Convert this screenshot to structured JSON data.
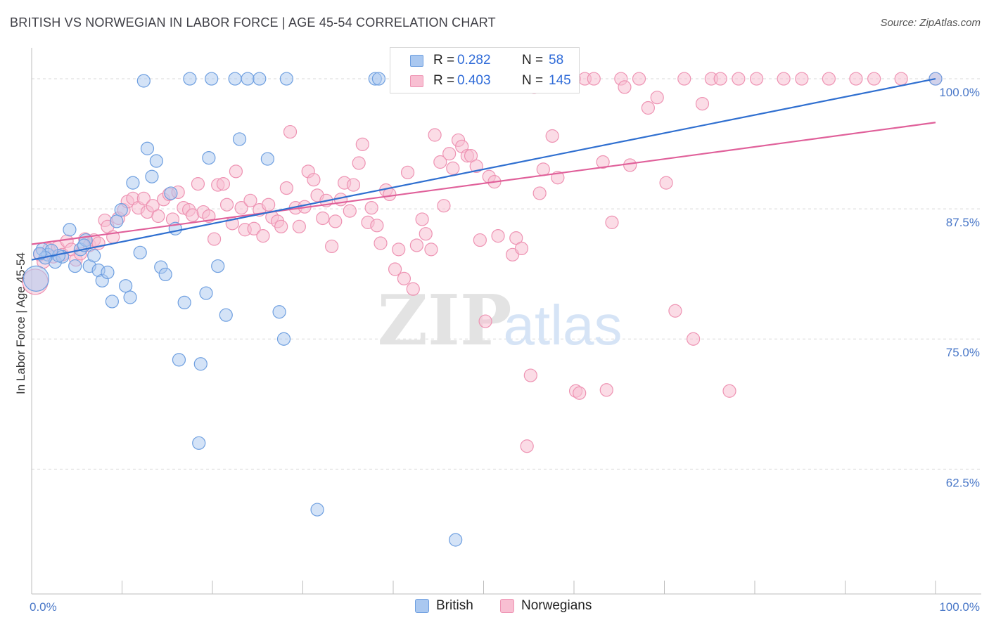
{
  "title": "BRITISH VS NORWEGIAN IN LABOR FORCE | AGE 45-54 CORRELATION CHART",
  "source": "Source: ZipAtlas.com",
  "watermark": {
    "zip": "ZIP",
    "atlas": "atlas"
  },
  "legend": {
    "british": {
      "r_label": "R =",
      "r_value": "0.282",
      "n_label": "N =",
      "n_value": "58"
    },
    "norwegians": {
      "r_label": "R =",
      "r_value": "0.403",
      "n_label": "N =",
      "n_value": "145"
    }
  },
  "bottom_legend": {
    "british": "British",
    "norwegians": "Norwegians"
  },
  "colors": {
    "british_fill": "#aac8f0",
    "british_stroke": "#6e9fe0",
    "british_line": "#2f6fd0",
    "norwegian_fill": "#f8bfd2",
    "norwegian_stroke": "#ee93b3",
    "norwegian_line": "#e0609a",
    "tick_text": "#4a78c8",
    "grid": "#d8d8d8"
  },
  "chart_data": {
    "type": "scatter",
    "title": "BRITISH VS NORWEGIAN IN LABOR FORCE | AGE 45-54 CORRELATION CHART",
    "xlabel": "",
    "ylabel": "In Labor Force | Age 45-54",
    "xlim": [
      0,
      100
    ],
    "ylim": [
      50.5,
      102.3
    ],
    "x_tick_labels": [
      "0.0%",
      "100.0%"
    ],
    "y_ticks": [
      {
        "value": 100.0,
        "label": "100.0%"
      },
      {
        "value": 87.5,
        "label": "87.5%"
      },
      {
        "value": 75.0,
        "label": "75.0%"
      },
      {
        "value": 62.5,
        "label": "62.5%"
      }
    ],
    "grid": true,
    "series": [
      {
        "name": "British",
        "trend": {
          "x": [
            0,
            100
          ],
          "y": [
            82.6,
            100.0
          ]
        },
        "points": [
          [
            0.5,
            80.8
          ],
          [
            1.2,
            83.6
          ],
          [
            1.8,
            83.1
          ],
          [
            2.6,
            82.4
          ],
          [
            3.4,
            82.9
          ],
          [
            4.2,
            85.5
          ],
          [
            4.8,
            82.0
          ],
          [
            5.4,
            83.6
          ],
          [
            6.0,
            84.5
          ],
          [
            6.4,
            82.0
          ],
          [
            6.9,
            83.0
          ],
          [
            7.4,
            81.6
          ],
          [
            7.8,
            80.6
          ],
          [
            8.4,
            81.4
          ],
          [
            8.9,
            78.6
          ],
          [
            9.4,
            86.3
          ],
          [
            9.9,
            87.4
          ],
          [
            10.4,
            80.1
          ],
          [
            10.9,
            79.0
          ],
          [
            11.2,
            90.0
          ],
          [
            12.0,
            83.3
          ],
          [
            12.4,
            99.8
          ],
          [
            12.8,
            93.3
          ],
          [
            13.3,
            90.6
          ],
          [
            13.8,
            92.1
          ],
          [
            14.3,
            81.9
          ],
          [
            14.8,
            81.2
          ],
          [
            15.4,
            89.0
          ],
          [
            15.9,
            85.6
          ],
          [
            16.9,
            78.5
          ],
          [
            17.5,
            100.0
          ],
          [
            18.5,
            65.0
          ],
          [
            18.7,
            72.6
          ],
          [
            19.3,
            79.4
          ],
          [
            19.6,
            92.4
          ],
          [
            16.3,
            73.0
          ],
          [
            19.9,
            100.0
          ],
          [
            20.6,
            82.0
          ],
          [
            21.5,
            77.3
          ],
          [
            22.5,
            100.0
          ],
          [
            23.0,
            94.2
          ],
          [
            23.9,
            100.0
          ],
          [
            25.2,
            100.0
          ],
          [
            26.1,
            92.3
          ],
          [
            27.4,
            77.6
          ],
          [
            27.9,
            75.0
          ],
          [
            28.2,
            100.0
          ],
          [
            31.6,
            58.6
          ],
          [
            38.0,
            100.0
          ],
          [
            38.4,
            100.0
          ],
          [
            46.9,
            55.7
          ],
          [
            52.0,
            100.0
          ],
          [
            100.0,
            100.0
          ],
          [
            3.0,
            83.0
          ],
          [
            2.2,
            83.5
          ],
          [
            5.8,
            84.0
          ],
          [
            1.5,
            82.8
          ],
          [
            0.9,
            83.2
          ]
        ]
      },
      {
        "name": "Norwegians",
        "trend": {
          "x": [
            0,
            100
          ],
          "y": [
            84.1,
            95.8
          ]
        },
        "points": [
          [
            0.4,
            80.5
          ],
          [
            0.9,
            83.1
          ],
          [
            1.3,
            82.4
          ],
          [
            1.9,
            83.6
          ],
          [
            2.4,
            82.9
          ],
          [
            2.9,
            83.8
          ],
          [
            3.4,
            83.1
          ],
          [
            3.9,
            84.4
          ],
          [
            4.4,
            83.6
          ],
          [
            4.9,
            82.6
          ],
          [
            5.4,
            83.2
          ],
          [
            5.9,
            84.6
          ],
          [
            6.4,
            84.0
          ],
          [
            6.9,
            84.5
          ],
          [
            7.4,
            84.2
          ],
          [
            8.1,
            86.4
          ],
          [
            8.4,
            85.8
          ],
          [
            9.0,
            84.8
          ],
          [
            9.6,
            86.6
          ],
          [
            10.2,
            87.4
          ],
          [
            10.6,
            88.2
          ],
          [
            11.2,
            88.5
          ],
          [
            11.8,
            87.6
          ],
          [
            12.4,
            88.5
          ],
          [
            12.8,
            87.2
          ],
          [
            13.4,
            87.8
          ],
          [
            14.0,
            86.8
          ],
          [
            14.6,
            88.4
          ],
          [
            15.2,
            88.9
          ],
          [
            15.6,
            86.5
          ],
          [
            16.2,
            89.1
          ],
          [
            16.8,
            87.6
          ],
          [
            17.4,
            87.4
          ],
          [
            17.8,
            86.9
          ],
          [
            18.4,
            89.9
          ],
          [
            19.0,
            87.2
          ],
          [
            19.6,
            86.8
          ],
          [
            20.2,
            84.6
          ],
          [
            20.6,
            89.8
          ],
          [
            21.2,
            89.9
          ],
          [
            21.6,
            87.9
          ],
          [
            22.2,
            86.1
          ],
          [
            22.6,
            91.1
          ],
          [
            23.2,
            87.6
          ],
          [
            23.6,
            85.5
          ],
          [
            24.2,
            88.3
          ],
          [
            24.6,
            85.6
          ],
          [
            25.2,
            87.4
          ],
          [
            25.6,
            84.9
          ],
          [
            26.2,
            87.9
          ],
          [
            26.6,
            86.7
          ],
          [
            27.2,
            86.3
          ],
          [
            27.6,
            85.8
          ],
          [
            28.2,
            89.5
          ],
          [
            28.6,
            94.9
          ],
          [
            29.2,
            87.6
          ],
          [
            29.6,
            85.8
          ],
          [
            30.2,
            87.7
          ],
          [
            30.6,
            91.1
          ],
          [
            31.2,
            90.3
          ],
          [
            31.6,
            88.8
          ],
          [
            32.2,
            86.6
          ],
          [
            32.6,
            88.3
          ],
          [
            33.2,
            83.9
          ],
          [
            33.6,
            86.3
          ],
          [
            34.2,
            88.4
          ],
          [
            34.6,
            90.0
          ],
          [
            35.2,
            87.3
          ],
          [
            35.6,
            89.8
          ],
          [
            36.2,
            91.9
          ],
          [
            36.6,
            93.7
          ],
          [
            37.2,
            86.2
          ],
          [
            37.6,
            87.6
          ],
          [
            38.2,
            85.9
          ],
          [
            38.6,
            84.2
          ],
          [
            39.2,
            89.3
          ],
          [
            39.6,
            88.9
          ],
          [
            40.2,
            81.7
          ],
          [
            40.6,
            83.6
          ],
          [
            41.2,
            80.8
          ],
          [
            41.6,
            91.0
          ],
          [
            42.2,
            79.8
          ],
          [
            42.6,
            84.0
          ],
          [
            43.2,
            86.5
          ],
          [
            43.6,
            85.1
          ],
          [
            44.2,
            83.6
          ],
          [
            44.6,
            94.6
          ],
          [
            45.2,
            92.0
          ],
          [
            45.6,
            87.8
          ],
          [
            46.2,
            92.8
          ],
          [
            46.6,
            91.4
          ],
          [
            47.2,
            94.1
          ],
          [
            47.6,
            93.5
          ],
          [
            48.2,
            92.6
          ],
          [
            48.6,
            92.6
          ],
          [
            49.2,
            91.6
          ],
          [
            49.6,
            84.5
          ],
          [
            50.2,
            76.7
          ],
          [
            50.6,
            90.6
          ],
          [
            51.2,
            90.1
          ],
          [
            51.6,
            84.9
          ],
          [
            52.2,
            99.6
          ],
          [
            53.2,
            83.1
          ],
          [
            53.6,
            84.7
          ],
          [
            54.2,
            83.7
          ],
          [
            55.2,
            71.5
          ],
          [
            55.6,
            99.2
          ],
          [
            56.2,
            89.0
          ],
          [
            56.6,
            91.3
          ],
          [
            57.6,
            94.5
          ],
          [
            58.2,
            90.5
          ],
          [
            59.2,
            100.0
          ],
          [
            60.2,
            70.0
          ],
          [
            60.6,
            69.8
          ],
          [
            61.2,
            100.0
          ],
          [
            62.2,
            100.0
          ],
          [
            63.2,
            92.0
          ],
          [
            63.6,
            70.1
          ],
          [
            64.2,
            86.2
          ],
          [
            65.2,
            100.0
          ],
          [
            65.6,
            99.2
          ],
          [
            66.2,
            91.7
          ],
          [
            67.2,
            100.0
          ],
          [
            68.2,
            97.2
          ],
          [
            69.2,
            98.2
          ],
          [
            70.2,
            90.0
          ],
          [
            71.2,
            77.7
          ],
          [
            72.2,
            100.0
          ],
          [
            73.2,
            75.0
          ],
          [
            74.2,
            97.6
          ],
          [
            75.2,
            100.0
          ],
          [
            76.2,
            100.0
          ],
          [
            77.2,
            70.0
          ],
          [
            78.2,
            100.0
          ],
          [
            80.2,
            100.0
          ],
          [
            83.2,
            100.0
          ],
          [
            85.2,
            100.0
          ],
          [
            88.2,
            100.0
          ],
          [
            91.2,
            100.0
          ],
          [
            93.2,
            100.0
          ],
          [
            96.2,
            100.0
          ],
          [
            100.0,
            100.0
          ],
          [
            54.8,
            64.7
          ],
          [
            60.0,
            100.0
          ]
        ]
      }
    ]
  }
}
